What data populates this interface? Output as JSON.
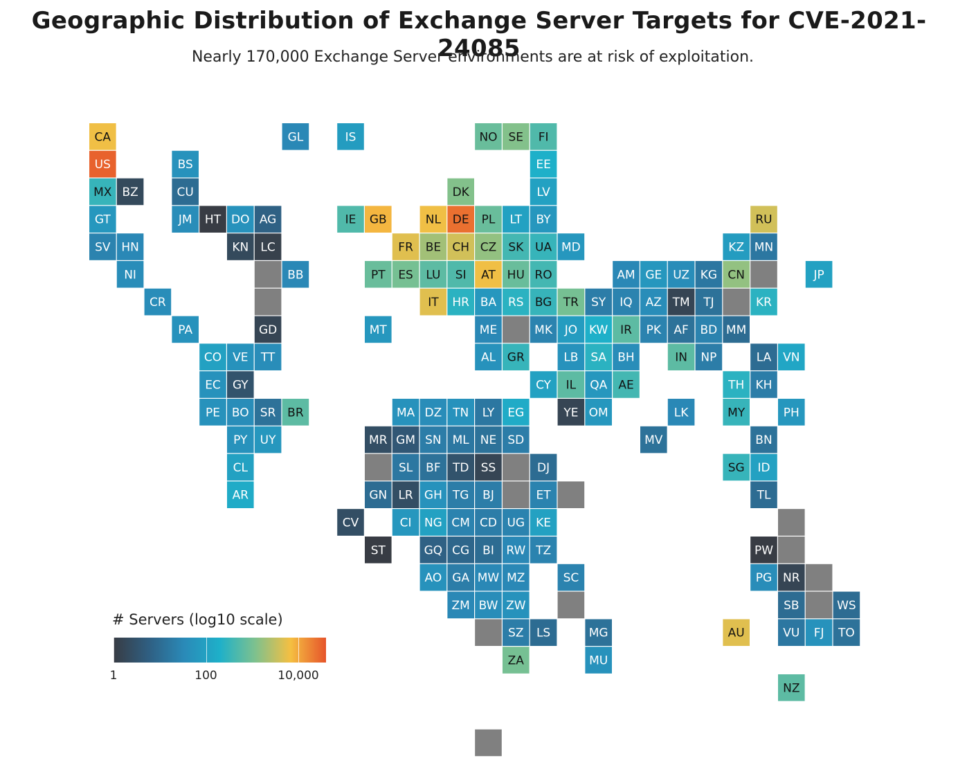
{
  "title": "Geographic Distribution of Exchange Server Targets for CVE-2021-24085",
  "subtitle": "Nearly 170,000 Exchange Server environments are at risk of exploitation.",
  "legend": {
    "title": "# Servers (log10 scale)",
    "ticks": [
      {
        "label": "1",
        "log10": 0
      },
      {
        "label": "100",
        "log10": 2
      },
      {
        "label": "10,000",
        "log10": 4
      }
    ],
    "colors": [
      "#383c44",
      "#2f5f82",
      "#2a8ab8",
      "#1eb0c9",
      "#7ec18e",
      "#f5bf42",
      "#e6542a"
    ]
  },
  "colors": {
    "missing": "#808080",
    "label_light": "#ffffff",
    "label_dark": "#111111"
  },
  "chart_data": {
    "type": "heatmap",
    "layout": "world tile-grid map",
    "value_description": "log10 of server count per country",
    "scale": {
      "min_log10": 0,
      "max_log10": 4.6,
      "type": "log10"
    },
    "tiles": [
      {
        "code": "CA",
        "col": 0,
        "row": 0,
        "log10": 3.8
      },
      {
        "code": "GL",
        "col": 7,
        "row": 0,
        "log10": 1.5
      },
      {
        "code": "IS",
        "col": 9,
        "row": 0,
        "log10": 1.9
      },
      {
        "code": "NO",
        "col": 14,
        "row": 0,
        "log10": 2.9
      },
      {
        "code": "SE",
        "col": 15,
        "row": 0,
        "log10": 3.1
      },
      {
        "code": "FI",
        "col": 16,
        "row": 0,
        "log10": 2.7
      },
      {
        "code": "US",
        "col": 0,
        "row": 1,
        "log10": 4.5
      },
      {
        "code": "BS",
        "col": 3,
        "row": 1,
        "log10": 1.7
      },
      {
        "code": "EE",
        "col": 16,
        "row": 1,
        "log10": 2.3
      },
      {
        "code": "MX",
        "col": 0,
        "row": 2,
        "log10": 2.5
      },
      {
        "code": "BZ",
        "col": 1,
        "row": 2,
        "log10": 0.3
      },
      {
        "code": "CU",
        "col": 3,
        "row": 2,
        "log10": 1.0
      },
      {
        "code": "DK",
        "col": 13,
        "row": 2,
        "log10": 3.1
      },
      {
        "code": "LV",
        "col": 16,
        "row": 2,
        "log10": 2.0
      },
      {
        "code": "GT",
        "col": 0,
        "row": 3,
        "log10": 1.8
      },
      {
        "code": "JM",
        "col": 3,
        "row": 3,
        "log10": 1.6
      },
      {
        "code": "HT",
        "col": 4,
        "row": 3,
        "log10": 0.0
      },
      {
        "code": "DO",
        "col": 5,
        "row": 3,
        "log10": 1.7
      },
      {
        "code": "AG",
        "col": 6,
        "row": 3,
        "log10": 0.8
      },
      {
        "code": "IE",
        "col": 9,
        "row": 3,
        "log10": 2.7
      },
      {
        "code": "GB",
        "col": 10,
        "row": 3,
        "log10": 3.9
      },
      {
        "code": "NL",
        "col": 12,
        "row": 3,
        "log10": 3.8
      },
      {
        "code": "DE",
        "col": 13,
        "row": 3,
        "log10": 4.4
      },
      {
        "code": "PL",
        "col": 14,
        "row": 3,
        "log10": 2.9
      },
      {
        "code": "LT",
        "col": 15,
        "row": 3,
        "log10": 2.0
      },
      {
        "code": "BY",
        "col": 16,
        "row": 3,
        "log10": 1.8
      },
      {
        "code": "RU",
        "col": 24,
        "row": 3,
        "log10": 3.6
      },
      {
        "code": "SV",
        "col": 0,
        "row": 4,
        "log10": 1.4
      },
      {
        "code": "HN",
        "col": 1,
        "row": 4,
        "log10": 1.5
      },
      {
        "code": "KN",
        "col": 5,
        "row": 4,
        "log10": 0.3
      },
      {
        "code": "LC",
        "col": 6,
        "row": 4,
        "log10": 0.1
      },
      {
        "code": "FR",
        "col": 11,
        "row": 4,
        "log10": 3.7
      },
      {
        "code": "BE",
        "col": 12,
        "row": 4,
        "log10": 3.3
      },
      {
        "code": "CH",
        "col": 13,
        "row": 4,
        "log10": 3.6
      },
      {
        "code": "CZ",
        "col": 14,
        "row": 4,
        "log10": 3.2
      },
      {
        "code": "SK",
        "col": 15,
        "row": 4,
        "log10": 2.6
      },
      {
        "code": "UA",
        "col": 16,
        "row": 4,
        "log10": 2.5
      },
      {
        "code": "MD",
        "col": 17,
        "row": 4,
        "log10": 1.8
      },
      {
        "code": "KZ",
        "col": 23,
        "row": 4,
        "log10": 1.9
      },
      {
        "code": "MN",
        "col": 24,
        "row": 4,
        "log10": 1.2
      },
      {
        "code": "NI",
        "col": 1,
        "row": 5,
        "log10": 1.6
      },
      {
        "code": "",
        "col": 6,
        "row": 5,
        "log10": null
      },
      {
        "code": "BB",
        "col": 7,
        "row": 5,
        "log10": 1.5
      },
      {
        "code": "PT",
        "col": 10,
        "row": 5,
        "log10": 2.9
      },
      {
        "code": "ES",
        "col": 11,
        "row": 5,
        "log10": 3.0
      },
      {
        "code": "LU",
        "col": 12,
        "row": 5,
        "log10": 2.8
      },
      {
        "code": "SI",
        "col": 13,
        "row": 5,
        "log10": 2.7
      },
      {
        "code": "AT",
        "col": 14,
        "row": 5,
        "log10": 3.8
      },
      {
        "code": "HU",
        "col": 15,
        "row": 5,
        "log10": 2.9
      },
      {
        "code": "RO",
        "col": 16,
        "row": 5,
        "log10": 2.6
      },
      {
        "code": "AM",
        "col": 19,
        "row": 5,
        "log10": 1.5
      },
      {
        "code": "GE",
        "col": 20,
        "row": 5,
        "log10": 1.8
      },
      {
        "code": "UZ",
        "col": 21,
        "row": 5,
        "log10": 1.6
      },
      {
        "code": "KG",
        "col": 22,
        "row": 5,
        "log10": 1.2
      },
      {
        "code": "CN",
        "col": 23,
        "row": 5,
        "log10": 3.2
      },
      {
        "code": "",
        "col": 24,
        "row": 5,
        "log10": null
      },
      {
        "code": "JP",
        "col": 26,
        "row": 5,
        "log10": 2.0
      },
      {
        "code": "CR",
        "col": 2,
        "row": 6,
        "log10": 1.6
      },
      {
        "code": "",
        "col": 6,
        "row": 6,
        "log10": null
      },
      {
        "code": "IT",
        "col": 12,
        "row": 6,
        "log10": 3.7
      },
      {
        "code": "HR",
        "col": 13,
        "row": 6,
        "log10": 2.4
      },
      {
        "code": "BA",
        "col": 14,
        "row": 6,
        "log10": 1.8
      },
      {
        "code": "RS",
        "col": 15,
        "row": 6,
        "log10": 2.4
      },
      {
        "code": "BG",
        "col": 16,
        "row": 6,
        "log10": 2.5
      },
      {
        "code": "TR",
        "col": 17,
        "row": 6,
        "log10": 3.0
      },
      {
        "code": "SY",
        "col": 18,
        "row": 6,
        "log10": 1.3
      },
      {
        "code": "IQ",
        "col": 19,
        "row": 6,
        "log10": 1.4
      },
      {
        "code": "AZ",
        "col": 20,
        "row": 6,
        "log10": 1.6
      },
      {
        "code": "TM",
        "col": 21,
        "row": 6,
        "log10": 0.2
      },
      {
        "code": "TJ",
        "col": 22,
        "row": 6,
        "log10": 1.1
      },
      {
        "code": "",
        "col": 23,
        "row": 6,
        "log10": null
      },
      {
        "code": "KR",
        "col": 24,
        "row": 6,
        "log10": 2.4
      },
      {
        "code": "PA",
        "col": 3,
        "row": 7,
        "log10": 1.7
      },
      {
        "code": "GD",
        "col": 6,
        "row": 7,
        "log10": 0.2
      },
      {
        "code": "MT",
        "col": 10,
        "row": 7,
        "log10": 1.8
      },
      {
        "code": "ME",
        "col": 14,
        "row": 7,
        "log10": 1.5
      },
      {
        "code": "",
        "col": 15,
        "row": 7,
        "log10": null
      },
      {
        "code": "MK",
        "col": 16,
        "row": 7,
        "log10": 1.4
      },
      {
        "code": "JO",
        "col": 17,
        "row": 7,
        "log10": 1.9
      },
      {
        "code": "KW",
        "col": 18,
        "row": 7,
        "log10": 2.3
      },
      {
        "code": "IR",
        "col": 19,
        "row": 7,
        "log10": 2.8
      },
      {
        "code": "PK",
        "col": 20,
        "row": 7,
        "log10": 1.4
      },
      {
        "code": "AF",
        "col": 21,
        "row": 7,
        "log10": 1.1
      },
      {
        "code": "BD",
        "col": 22,
        "row": 7,
        "log10": 1.4
      },
      {
        "code": "MM",
        "col": 23,
        "row": 7,
        "log10": 1.0
      },
      {
        "code": "CO",
        "col": 4,
        "row": 8,
        "log10": 2.0
      },
      {
        "code": "VE",
        "col": 5,
        "row": 8,
        "log10": 1.7
      },
      {
        "code": "TT",
        "col": 6,
        "row": 8,
        "log10": 1.6
      },
      {
        "code": "AL",
        "col": 14,
        "row": 8,
        "log10": 1.7
      },
      {
        "code": "GR",
        "col": 15,
        "row": 8,
        "log10": 2.5
      },
      {
        "code": "LB",
        "col": 17,
        "row": 8,
        "log10": 1.7
      },
      {
        "code": "SA",
        "col": 18,
        "row": 8,
        "log10": 2.4
      },
      {
        "code": "BH",
        "col": 19,
        "row": 8,
        "log10": 1.6
      },
      {
        "code": "IN",
        "col": 21,
        "row": 8,
        "log10": 2.8
      },
      {
        "code": "NP",
        "col": 22,
        "row": 8,
        "log10": 1.3
      },
      {
        "code": "LA",
        "col": 24,
        "row": 8,
        "log10": 1.0
      },
      {
        "code": "VN",
        "col": 25,
        "row": 8,
        "log10": 2.1
      },
      {
        "code": "EC",
        "col": 4,
        "row": 9,
        "log10": 1.7
      },
      {
        "code": "GY",
        "col": 5,
        "row": 9,
        "log10": 0.5
      },
      {
        "code": "CY",
        "col": 16,
        "row": 9,
        "log10": 2.0
      },
      {
        "code": "IL",
        "col": 17,
        "row": 9,
        "log10": 2.8
      },
      {
        "code": "QA",
        "col": 18,
        "row": 9,
        "log10": 1.8
      },
      {
        "code": "AE",
        "col": 19,
        "row": 9,
        "log10": 2.6
      },
      {
        "code": "TH",
        "col": 23,
        "row": 9,
        "log10": 2.4
      },
      {
        "code": "KH",
        "col": 24,
        "row": 9,
        "log10": 1.3
      },
      {
        "code": "PE",
        "col": 4,
        "row": 10,
        "log10": 1.7
      },
      {
        "code": "BO",
        "col": 5,
        "row": 10,
        "log10": 1.6
      },
      {
        "code": "SR",
        "col": 6,
        "row": 10,
        "log10": 1.1
      },
      {
        "code": "BR",
        "col": 7,
        "row": 10,
        "log10": 2.8
      },
      {
        "code": "MA",
        "col": 11,
        "row": 10,
        "log10": 1.7
      },
      {
        "code": "DZ",
        "col": 12,
        "row": 10,
        "log10": 1.6
      },
      {
        "code": "TN",
        "col": 13,
        "row": 10,
        "log10": 1.7
      },
      {
        "code": "LY",
        "col": 14,
        "row": 10,
        "log10": 1.2
      },
      {
        "code": "EG",
        "col": 15,
        "row": 10,
        "log10": 2.2
      },
      {
        "code": "YE",
        "col": 17,
        "row": 10,
        "log10": 0.2
      },
      {
        "code": "OM",
        "col": 18,
        "row": 10,
        "log10": 1.8
      },
      {
        "code": "LK",
        "col": 21,
        "row": 10,
        "log10": 1.5
      },
      {
        "code": "MY",
        "col": 23,
        "row": 10,
        "log10": 2.5
      },
      {
        "code": "PH",
        "col": 25,
        "row": 10,
        "log10": 1.8
      },
      {
        "code": "PY",
        "col": 5,
        "row": 11,
        "log10": 1.7
      },
      {
        "code": "UY",
        "col": 6,
        "row": 11,
        "log10": 1.8
      },
      {
        "code": "MR",
        "col": 10,
        "row": 11,
        "log10": 0.4
      },
      {
        "code": "GM",
        "col": 11,
        "row": 11,
        "log10": 0.6
      },
      {
        "code": "SN",
        "col": 12,
        "row": 11,
        "log10": 1.3
      },
      {
        "code": "ML",
        "col": 13,
        "row": 11,
        "log10": 1.2
      },
      {
        "code": "NE",
        "col": 14,
        "row": 11,
        "log10": 1.1
      },
      {
        "code": "SD",
        "col": 15,
        "row": 11,
        "log10": 1.3
      },
      {
        "code": "MV",
        "col": 20,
        "row": 11,
        "log10": 1.1
      },
      {
        "code": "BN",
        "col": 24,
        "row": 11,
        "log10": 1.1
      },
      {
        "code": "CL",
        "col": 5,
        "row": 12,
        "log10": 2.0
      },
      {
        "code": "",
        "col": 10,
        "row": 12,
        "log10": null
      },
      {
        "code": "SL",
        "col": 11,
        "row": 12,
        "log10": 1.2
      },
      {
        "code": "BF",
        "col": 12,
        "row": 12,
        "log10": 1.1
      },
      {
        "code": "TD",
        "col": 13,
        "row": 12,
        "log10": 0.5
      },
      {
        "code": "SS",
        "col": 14,
        "row": 12,
        "log10": 0.2
      },
      {
        "code": "",
        "col": 15,
        "row": 12,
        "log10": null
      },
      {
        "code": "DJ",
        "col": 16,
        "row": 12,
        "log10": 1.0
      },
      {
        "code": "SG",
        "col": 23,
        "row": 12,
        "log10": 2.5
      },
      {
        "code": "ID",
        "col": 24,
        "row": 12,
        "log10": 2.0
      },
      {
        "code": "AR",
        "col": 5,
        "row": 13,
        "log10": 2.2
      },
      {
        "code": "GN",
        "col": 10,
        "row": 13,
        "log10": 1.0
      },
      {
        "code": "LR",
        "col": 11,
        "row": 13,
        "log10": 0.4
      },
      {
        "code": "GH",
        "col": 12,
        "row": 13,
        "log10": 1.7
      },
      {
        "code": "TG",
        "col": 13,
        "row": 13,
        "log10": 1.3
      },
      {
        "code": "BJ",
        "col": 14,
        "row": 13,
        "log10": 1.3
      },
      {
        "code": "",
        "col": 15,
        "row": 13,
        "log10": null
      },
      {
        "code": "ET",
        "col": 16,
        "row": 13,
        "log10": 1.4
      },
      {
        "code": "",
        "col": 17,
        "row": 13,
        "log10": null
      },
      {
        "code": "TL",
        "col": 24,
        "row": 13,
        "log10": 1.0
      },
      {
        "code": "CV",
        "col": 9,
        "row": 14,
        "log10": 0.4
      },
      {
        "code": "CI",
        "col": 11,
        "row": 14,
        "log10": 1.8
      },
      {
        "code": "NG",
        "col": 12,
        "row": 14,
        "log10": 2.0
      },
      {
        "code": "CM",
        "col": 13,
        "row": 14,
        "log10": 1.4
      },
      {
        "code": "CD",
        "col": 14,
        "row": 14,
        "log10": 1.3
      },
      {
        "code": "UG",
        "col": 15,
        "row": 14,
        "log10": 1.4
      },
      {
        "code": "KE",
        "col": 16,
        "row": 14,
        "log10": 2.0
      },
      {
        "code": "",
        "col": 25,
        "row": 14,
        "log10": null
      },
      {
        "code": "ST",
        "col": 10,
        "row": 15,
        "log10": 0.0
      },
      {
        "code": "GQ",
        "col": 12,
        "row": 15,
        "log10": 0.8
      },
      {
        "code": "CG",
        "col": 13,
        "row": 15,
        "log10": 0.9
      },
      {
        "code": "BI",
        "col": 14,
        "row": 15,
        "log10": 1.0
      },
      {
        "code": "RW",
        "col": 15,
        "row": 15,
        "log10": 1.5
      },
      {
        "code": "TZ",
        "col": 16,
        "row": 15,
        "log10": 1.4
      },
      {
        "code": "PW",
        "col": 24,
        "row": 15,
        "log10": 0.0
      },
      {
        "code": "",
        "col": 25,
        "row": 15,
        "log10": null
      },
      {
        "code": "AO",
        "col": 12,
        "row": 16,
        "log10": 1.7
      },
      {
        "code": "GA",
        "col": 13,
        "row": 16,
        "log10": 1.3
      },
      {
        "code": "MW",
        "col": 14,
        "row": 16,
        "log10": 1.5
      },
      {
        "code": "MZ",
        "col": 15,
        "row": 16,
        "log10": 1.5
      },
      {
        "code": "SC",
        "col": 17,
        "row": 16,
        "log10": 1.4
      },
      {
        "code": "PG",
        "col": 24,
        "row": 16,
        "log10": 1.6
      },
      {
        "code": "NR",
        "col": 25,
        "row": 16,
        "log10": 0.2
      },
      {
        "code": "",
        "col": 26,
        "row": 16,
        "log10": null
      },
      {
        "code": "ZM",
        "col": 13,
        "row": 17,
        "log10": 1.5
      },
      {
        "code": "BW",
        "col": 14,
        "row": 17,
        "log10": 1.6
      },
      {
        "code": "ZW",
        "col": 15,
        "row": 17,
        "log10": 1.7
      },
      {
        "code": "",
        "col": 17,
        "row": 17,
        "log10": null
      },
      {
        "code": "SB",
        "col": 25,
        "row": 17,
        "log10": 1.0
      },
      {
        "code": "",
        "col": 26,
        "row": 17,
        "log10": null
      },
      {
        "code": "WS",
        "col": 27,
        "row": 17,
        "log10": 1.0
      },
      {
        "code": "",
        "col": 14,
        "row": 18,
        "log10": null
      },
      {
        "code": "SZ",
        "col": 15,
        "row": 18,
        "log10": 1.3
      },
      {
        "code": "LS",
        "col": 16,
        "row": 18,
        "log10": 1.0
      },
      {
        "code": "MG",
        "col": 18,
        "row": 18,
        "log10": 1.1
      },
      {
        "code": "AU",
        "col": 23,
        "row": 18,
        "log10": 3.7
      },
      {
        "code": "VU",
        "col": 25,
        "row": 18,
        "log10": 1.2
      },
      {
        "code": "FJ",
        "col": 26,
        "row": 18,
        "log10": 1.7
      },
      {
        "code": "TO",
        "col": 27,
        "row": 18,
        "log10": 1.1
      },
      {
        "code": "ZA",
        "col": 15,
        "row": 19,
        "log10": 3.0
      },
      {
        "code": "MU",
        "col": 18,
        "row": 19,
        "log10": 1.7
      },
      {
        "code": "NZ",
        "col": 25,
        "row": 20,
        "log10": 2.8
      },
      {
        "code": "",
        "col": 14,
        "row": 22,
        "log10": null
      }
    ]
  }
}
